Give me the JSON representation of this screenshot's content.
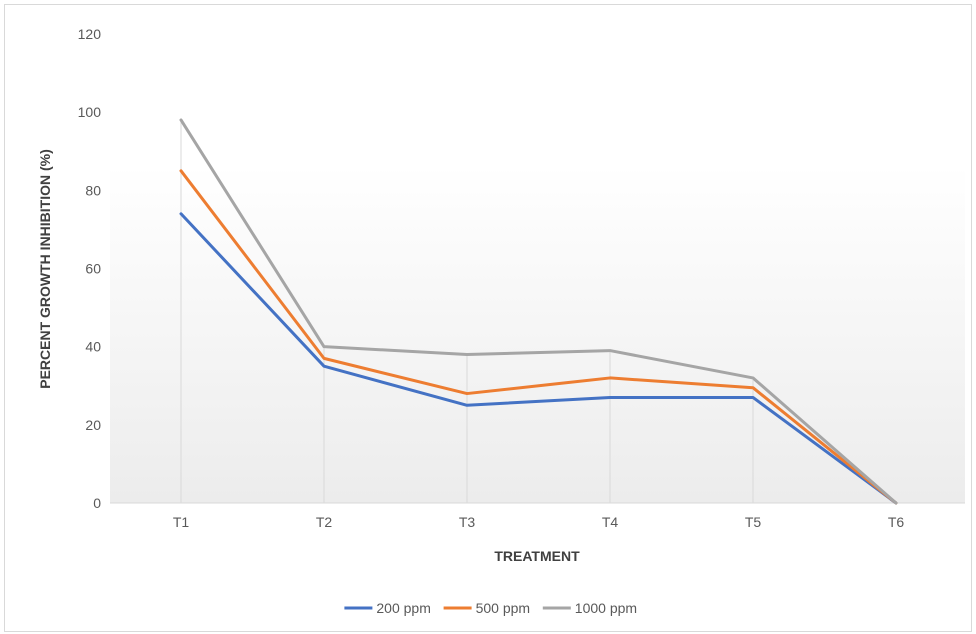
{
  "chart_data": {
    "type": "line",
    "title": "",
    "xlabel": "TREATMENT",
    "ylabel": "PERCENT GROWTH INHIBITION (%)",
    "categories": [
      "T1",
      "T2",
      "T3",
      "T4",
      "T5",
      "T6"
    ],
    "ylim": [
      0,
      120
    ],
    "yticks": [
      0,
      20,
      40,
      60,
      80,
      100,
      120
    ],
    "grid": false,
    "vertical_drop_lines": true,
    "legend_position": "bottom",
    "series": [
      {
        "name": "200 ppm",
        "color": "#4472C4",
        "values": [
          74,
          35,
          25,
          27,
          27,
          0
        ]
      },
      {
        "name": "500 ppm",
        "color": "#ED7D31",
        "values": [
          85,
          37,
          28,
          32,
          29.5,
          0
        ]
      },
      {
        "name": "1000 ppm",
        "color": "#A5A5A5",
        "values": [
          98,
          40,
          38,
          39,
          32,
          0
        ]
      }
    ]
  }
}
